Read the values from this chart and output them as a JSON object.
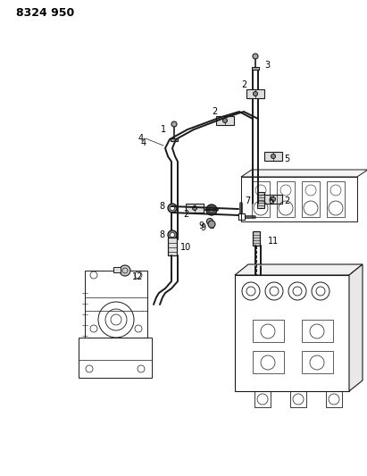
{
  "title": "8324 950",
  "bg_color": "#ffffff",
  "line_color": "#1a1a1a",
  "fig_width": 4.11,
  "fig_height": 5.33,
  "dpi": 100,
  "hose_lw": 1.4,
  "thin_lw": 0.7,
  "detail_lw": 0.5,
  "gray_fill": "#888888",
  "light_gray": "#cccccc",
  "mid_gray": "#aaaaaa"
}
